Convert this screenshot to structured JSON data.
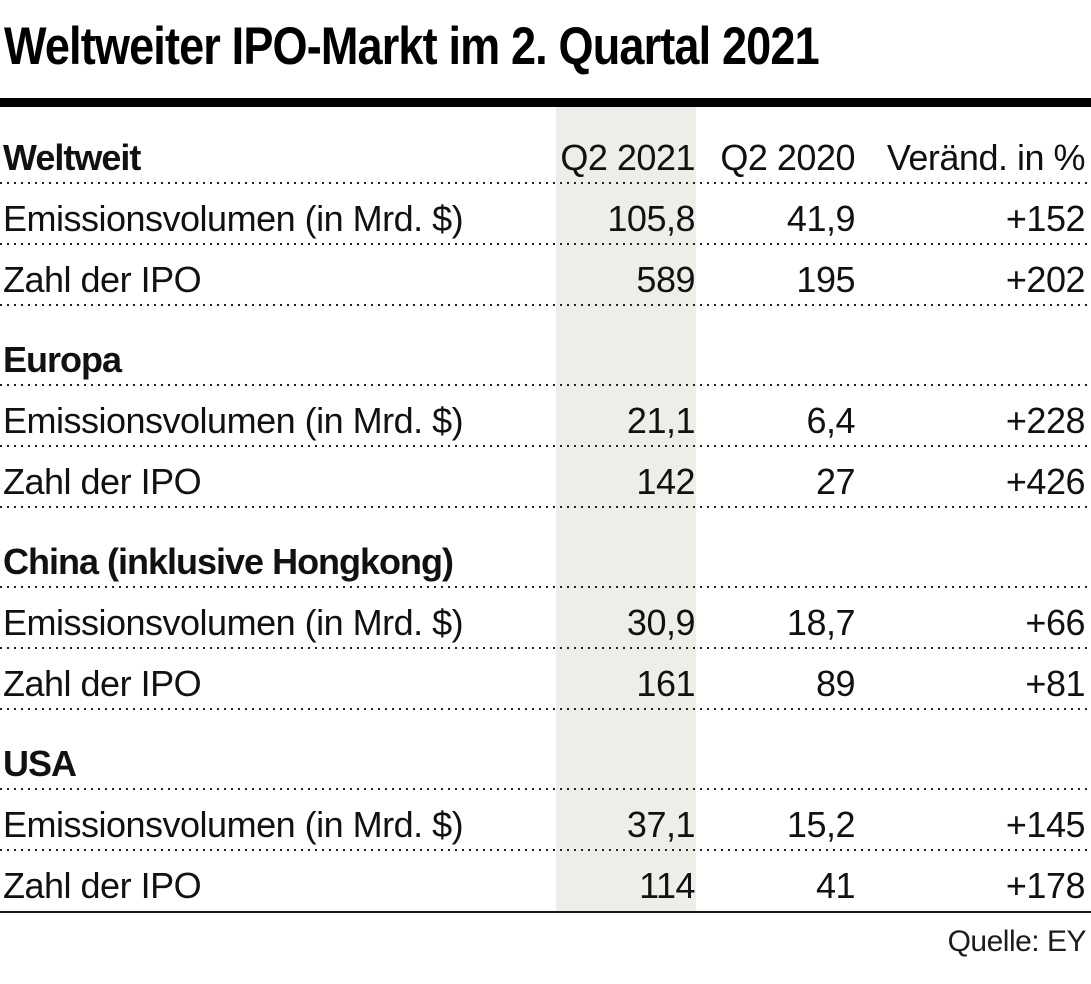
{
  "title": "Weltweiter IPO-Markt im 2. Quartal 2021",
  "source": "Quelle: EY",
  "columns": [
    "Q2 2021",
    "Q2 2020",
    "Veränd. in %"
  ],
  "colors": {
    "highlight_column": "#eeede8",
    "text": "#111111",
    "rule": "#000000"
  },
  "chart_data": {
    "type": "table",
    "title": "Weltweiter IPO-Markt im 2. Quartal 2021",
    "columns": [
      "Q2 2021",
      "Q2 2020",
      "Veränd. in %"
    ],
    "highlighted_column": "Q2 2021",
    "sections": [
      {
        "name": "Weltweit",
        "rows": [
          {
            "label": "Emissionsvolumen (in Mrd. $)",
            "values": [
              "105,8",
              "41,9",
              "+152"
            ]
          },
          {
            "label": "Zahl der IPO",
            "values": [
              "589",
              "195",
              "+202"
            ]
          }
        ]
      },
      {
        "name": "Europa",
        "rows": [
          {
            "label": "Emissionsvolumen (in Mrd. $)",
            "values": [
              "21,1",
              "6,4",
              "+228"
            ]
          },
          {
            "label": "Zahl der IPO",
            "values": [
              "142",
              "27",
              "+426"
            ]
          }
        ]
      },
      {
        "name": "China (inklusive Hongkong)",
        "rows": [
          {
            "label": "Emissionsvolumen (in Mrd. $)",
            "values": [
              "30,9",
              "18,7",
              "+66"
            ]
          },
          {
            "label": "Zahl der IPO",
            "values": [
              "161",
              "89",
              "+81"
            ]
          }
        ]
      },
      {
        "name": "USA",
        "rows": [
          {
            "label": "Emissionsvolumen (in Mrd. $)",
            "values": [
              "37,1",
              "15,2",
              "+145"
            ]
          },
          {
            "label": "Zahl der IPO",
            "values": [
              "114",
              "41",
              "+178"
            ]
          }
        ]
      }
    ],
    "source": "Quelle: EY"
  }
}
